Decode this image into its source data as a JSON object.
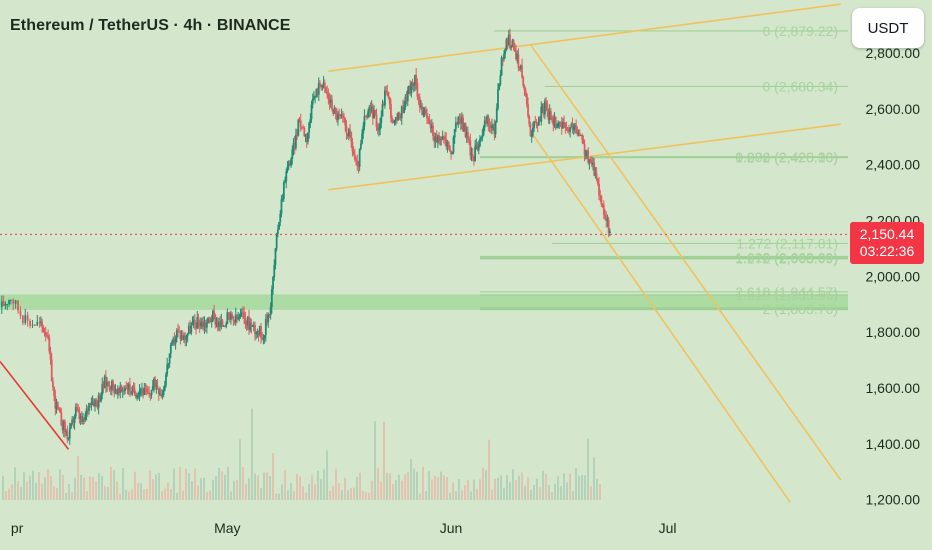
{
  "header": {
    "title": "Ethereum / TetherUS · 4h · BINANCE"
  },
  "currency_button": {
    "label": "USDT"
  },
  "last_price": {
    "value": "2,150.44",
    "countdown": "03:22:36",
    "color": "#f23645"
  },
  "colors": {
    "background": "#d4e7cc",
    "channel": "#f0c25e",
    "fib": "#9bcf92",
    "zone": "#a9d9a0",
    "up_candle": "#1e8c74",
    "down_candle": "#e05a5f",
    "price_line": "#f23645"
  },
  "chart_data": {
    "type": "candlestick",
    "symbol": "Ethereum / TetherUS",
    "interval": "4h",
    "exchange": "BINANCE",
    "quote_currency": "USDT",
    "y_axis": {
      "ticks": [
        "2,800.00",
        "2,600.00",
        "2,400.00",
        "2,200.00",
        "2,000.00",
        "1,800.00",
        "1,600.00",
        "1,400.00",
        "1,200.00"
      ],
      "tick_values": [
        2800,
        2600,
        2400,
        2200,
        2000,
        1800,
        1600,
        1400,
        1200
      ],
      "range": [
        1170,
        2990
      ]
    },
    "x_axis": {
      "ticks": [
        "pr",
        "May",
        "Jun",
        "Jul"
      ],
      "tick_values": [
        0,
        30,
        61,
        91
      ],
      "range": [
        -1.5,
        116
      ]
    },
    "last_price": 2150.44,
    "price_path": [
      [
        -1.5,
        1890
      ],
      [
        0,
        1930
      ],
      [
        2,
        1840
      ],
      [
        4,
        1830
      ],
      [
        5,
        1800
      ],
      [
        6,
        1560
      ],
      [
        7,
        1480
      ],
      [
        8,
        1420
      ],
      [
        9,
        1520
      ],
      [
        10,
        1470
      ],
      [
        11,
        1560
      ],
      [
        12,
        1550
      ],
      [
        13,
        1620
      ],
      [
        14,
        1610
      ],
      [
        15,
        1580
      ],
      [
        16,
        1610
      ],
      [
        17,
        1580
      ],
      [
        18,
        1600
      ],
      [
        19,
        1570
      ],
      [
        20,
        1620
      ],
      [
        21,
        1580
      ],
      [
        22,
        1720
      ],
      [
        23,
        1800
      ],
      [
        24,
        1780
      ],
      [
        25,
        1820
      ],
      [
        26,
        1840
      ],
      [
        27,
        1830
      ],
      [
        28,
        1860
      ],
      [
        29,
        1820
      ],
      [
        30,
        1850
      ],
      [
        31,
        1840
      ],
      [
        32,
        1860
      ],
      [
        33,
        1830
      ],
      [
        34,
        1810
      ],
      [
        35,
        1790
      ],
      [
        36,
        1900
      ],
      [
        37,
        2180
      ],
      [
        38,
        2360
      ],
      [
        39,
        2440
      ],
      [
        40,
        2560
      ],
      [
        41,
        2500
      ],
      [
        42,
        2640
      ],
      [
        43,
        2700
      ],
      [
        44,
        2640
      ],
      [
        45,
        2580
      ],
      [
        46,
        2560
      ],
      [
        47,
        2500
      ],
      [
        48,
        2380
      ],
      [
        49,
        2560
      ],
      [
        50,
        2600
      ],
      [
        51,
        2530
      ],
      [
        52,
        2680
      ],
      [
        53,
        2540
      ],
      [
        54,
        2580
      ],
      [
        55,
        2660
      ],
      [
        56,
        2700
      ],
      [
        57,
        2590
      ],
      [
        58,
        2550
      ],
      [
        59,
        2480
      ],
      [
        60,
        2500
      ],
      [
        61,
        2440
      ],
      [
        62,
        2580
      ],
      [
        63,
        2520
      ],
      [
        64,
        2420
      ],
      [
        65,
        2500
      ],
      [
        66,
        2560
      ],
      [
        67,
        2520
      ],
      [
        68,
        2780
      ],
      [
        69,
        2850
      ],
      [
        70,
        2800
      ],
      [
        71,
        2700
      ],
      [
        72,
        2520
      ],
      [
        73,
        2560
      ],
      [
        74,
        2610
      ],
      [
        75,
        2550
      ],
      [
        76,
        2560
      ],
      [
        77,
        2510
      ],
      [
        78,
        2540
      ],
      [
        79,
        2490
      ],
      [
        80,
        2420
      ],
      [
        81,
        2370
      ],
      [
        82,
        2250
      ],
      [
        83,
        2150.44
      ]
    ],
    "channel_upper": [
      [
        44,
        2735
      ],
      [
        115,
        2975
      ]
    ],
    "channel_lower": [
      [
        44,
        2310
      ],
      [
        115,
        2545
      ]
    ],
    "down_channel_upper": [
      [
        72,
        2830
      ],
      [
        115,
        1270
      ]
    ],
    "down_channel_lower": [
      [
        72,
        2520
      ],
      [
        108,
        1190
      ]
    ],
    "red_trendline": [
      [
        -1.5,
        1695
      ],
      [
        8,
        1380
      ]
    ],
    "support_zone": [
      1880,
      1935
    ],
    "fib_levels": [
      {
        "label": "0 (2,879.22)",
        "value": 2879.22,
        "from": 67
      },
      {
        "label": "0 (2,680.34)",
        "value": 2680.34,
        "from": 74
      },
      {
        "label": "0.886 (2,428.33)",
        "value": 2428.33,
        "from": 65
      },
      {
        "label": "1.272 (2,425.10)",
        "value": 2425.1,
        "from": 65
      },
      {
        "label": "1.272 (2,117.81)",
        "value": 2117.81,
        "from": 75
      },
      {
        "label": "1.618 (2,068.09)",
        "value": 2068.09,
        "from": 65
      },
      {
        "label": "1.272 (2,063.09)",
        "value": 2063.09,
        "from": 65
      },
      {
        "label": "2.618 (1,944.57)",
        "value": 1944.57,
        "from": 65
      },
      {
        "label": "1.618 (1,933.56)",
        "value": 1933.56,
        "from": 65
      },
      {
        "label": "2 (1,883.76)",
        "value": 1883.76,
        "from": 65
      }
    ]
  }
}
